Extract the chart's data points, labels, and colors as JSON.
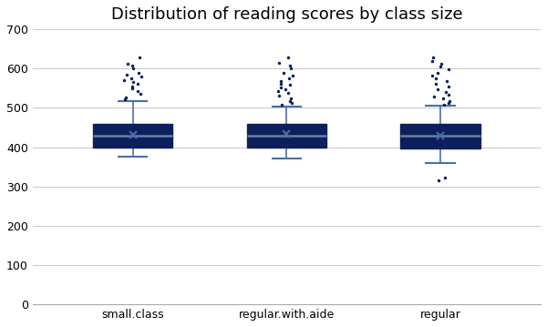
{
  "title": "Distribution of reading scores by class size",
  "categories": [
    "small.class",
    "regular.with.aide",
    "regular"
  ],
  "ylim": [
    0,
    700
  ],
  "yticks": [
    0,
    100,
    200,
    300,
    400,
    500,
    600,
    700
  ],
  "box_color": "#0D1F5C",
  "whisker_color": "#4A6FA5",
  "median_color": "#6880A8",
  "flier_color": "#0D1F5C",
  "mean_color": "#4A6FA5",
  "background_color": "#ffffff",
  "grid_color": "#cccccc",
  "title_fontsize": 13,
  "tick_fontsize": 9,
  "groups": {
    "small.class": {
      "q1": 400,
      "median": 430,
      "q3": 460,
      "mean": 432,
      "whisker_low": 375,
      "whisker_high": 517,
      "outliers_high": [
        522,
        527,
        535,
        542,
        550,
        555,
        560,
        565,
        570,
        575,
        580,
        585,
        590,
        600,
        607,
        613,
        628
      ],
      "outliers_low": []
    },
    "regular.with.aide": {
      "q1": 398,
      "median": 430,
      "q3": 460,
      "mean": 433,
      "whisker_low": 370,
      "whisker_high": 504,
      "outliers_high": [
        508,
        512,
        518,
        525,
        530,
        537,
        542,
        548,
        553,
        558,
        562,
        567,
        575,
        582,
        590,
        600,
        608,
        615,
        628
      ],
      "outliers_low": []
    },
    "regular": {
      "q1": 397,
      "median": 430,
      "q3": 460,
      "mean": 430,
      "whisker_low": 360,
      "whisker_high": 505,
      "outliers_high": [
        508,
        513,
        518,
        523,
        528,
        533,
        540,
        548,
        555,
        562,
        568,
        575,
        582,
        590,
        598,
        605,
        612,
        620,
        628
      ],
      "outliers_low": [
        315,
        323
      ]
    }
  }
}
